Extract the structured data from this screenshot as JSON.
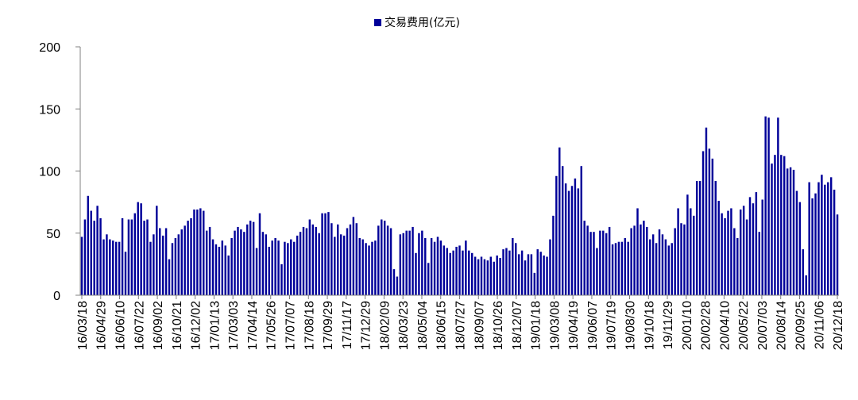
{
  "chart_data": {
    "type": "bar",
    "legend": {
      "label": "交易费用(亿元)",
      "position": "top"
    },
    "series": [
      {
        "name": "交易费用(亿元)",
        "color": "#000099",
        "values": [
          47,
          61,
          80,
          68,
          60,
          72,
          62,
          45,
          49,
          45,
          44,
          43,
          43,
          62,
          35,
          61,
          61,
          66,
          75,
          74,
          60,
          61,
          43,
          49,
          72,
          54,
          48,
          54,
          29,
          42,
          46,
          49,
          53,
          56,
          60,
          62,
          69,
          69,
          70,
          68,
          52,
          55,
          45,
          41,
          39,
          44,
          40,
          32,
          46,
          52,
          55,
          53,
          51,
          57,
          60,
          59,
          38,
          66,
          51,
          49,
          39,
          44,
          46,
          44,
          25,
          43,
          42,
          45,
          43,
          48,
          51,
          55,
          54,
          61,
          57,
          55,
          50,
          66,
          66,
          67,
          58,
          47,
          57,
          49,
          48,
          54,
          57,
          63,
          58,
          46,
          45,
          42,
          40,
          43,
          44,
          56,
          61,
          60,
          56,
          54,
          21,
          15,
          49,
          50,
          52,
          52,
          55,
          34,
          50,
          52,
          46,
          26,
          46,
          43,
          47,
          44,
          40,
          38,
          34,
          36,
          39,
          40,
          36,
          44,
          36,
          34,
          31,
          29,
          31,
          29,
          28,
          31,
          27,
          32,
          30,
          37,
          38,
          36,
          46,
          42,
          33,
          36,
          28,
          33,
          33,
          18,
          37,
          35,
          32,
          31,
          45,
          64,
          96,
          119,
          104,
          90,
          84,
          88,
          94,
          86,
          104,
          60,
          56,
          51,
          51,
          38,
          52,
          52,
          50,
          55,
          41,
          42,
          43,
          43,
          46,
          43,
          54,
          56,
          70,
          57,
          60,
          55,
          45,
          49,
          42,
          53,
          49,
          45,
          40,
          42,
          54,
          70,
          58,
          57,
          81,
          70,
          64,
          92,
          92,
          116,
          135,
          118,
          110,
          92,
          76,
          66,
          62,
          68,
          70,
          54,
          46,
          69,
          72,
          61,
          79,
          74,
          83,
          51,
          77,
          144,
          143,
          106,
          113,
          143,
          113,
          112,
          102,
          103,
          101,
          84,
          75,
          37,
          16,
          91,
          78,
          82,
          91,
          97,
          89,
          91,
          95,
          85,
          65
        ]
      }
    ],
    "categories_shown": [
      "16/03/18",
      "16/04/29",
      "16/06/10",
      "16/07/22",
      "16/09/02",
      "16/10/21",
      "16/12/02",
      "17/01/13",
      "17/03/03",
      "17/04/14",
      "17/05/26",
      "17/07/07",
      "17/08/18",
      "17/09/29",
      "17/11/17",
      "17/12/29",
      "18/02/09",
      "18/03/23",
      "18/05/04",
      "18/06/15",
      "18/07/27",
      "18/09/07",
      "18/10/26",
      "18/12/07",
      "19/01/18",
      "19/03/08",
      "19/04/19",
      "19/06/07",
      "19/07/19",
      "19/08/30",
      "19/10/18",
      "19/11/29",
      "20/01/10",
      "20/02/28",
      "20/04/10",
      "20/05/22",
      "20/07/03",
      "20/08/14",
      "20/09/25",
      "20/11/06",
      "20/12/18"
    ],
    "y_ticks": [
      "0",
      "50",
      "100",
      "150",
      "200"
    ],
    "ylim": [
      0,
      200
    ],
    "grid": false
  }
}
